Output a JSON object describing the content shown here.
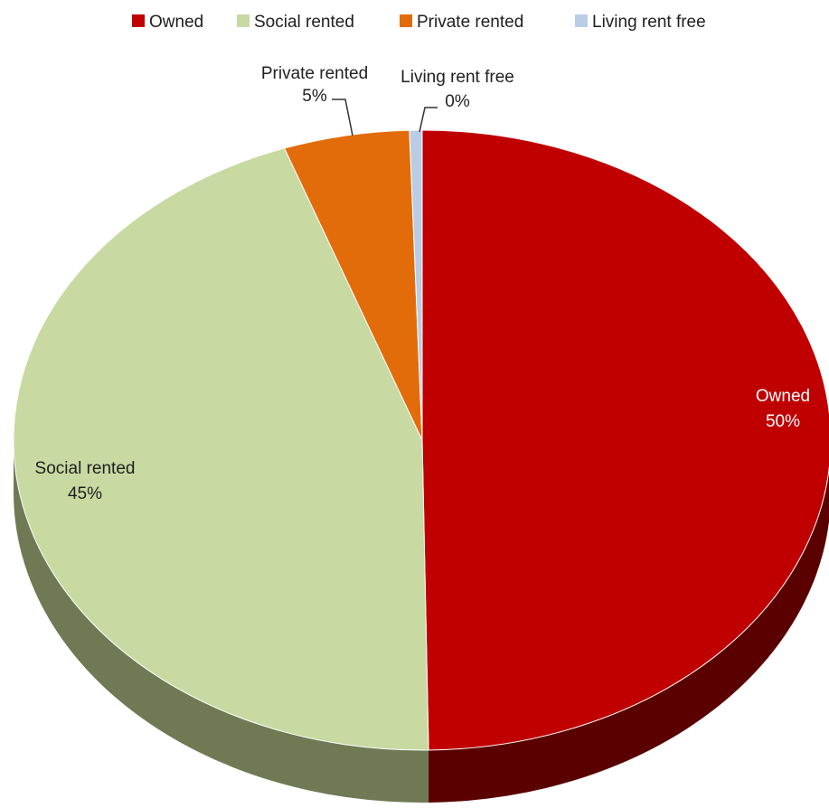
{
  "chart_data": {
    "type": "pie",
    "style": "3d",
    "legend_position": "top",
    "slices": [
      {
        "label": "Owned",
        "value": 50,
        "value_label": "50%",
        "color": "#c00000",
        "side_color": "#5a0000"
      },
      {
        "label": "Social rented",
        "value": 45,
        "value_label": "45%",
        "color": "#c8d9a2",
        "side_color": "#6f7a55"
      },
      {
        "label": "Private rented",
        "value": 5,
        "value_label": "5%",
        "color": "#e36c0a",
        "side_color": "#7a3a06"
      },
      {
        "label": "Living rent free",
        "value": 0.5,
        "value_label": "0%",
        "color": "#b9cde5",
        "side_color": "#6b7a8c"
      }
    ]
  }
}
